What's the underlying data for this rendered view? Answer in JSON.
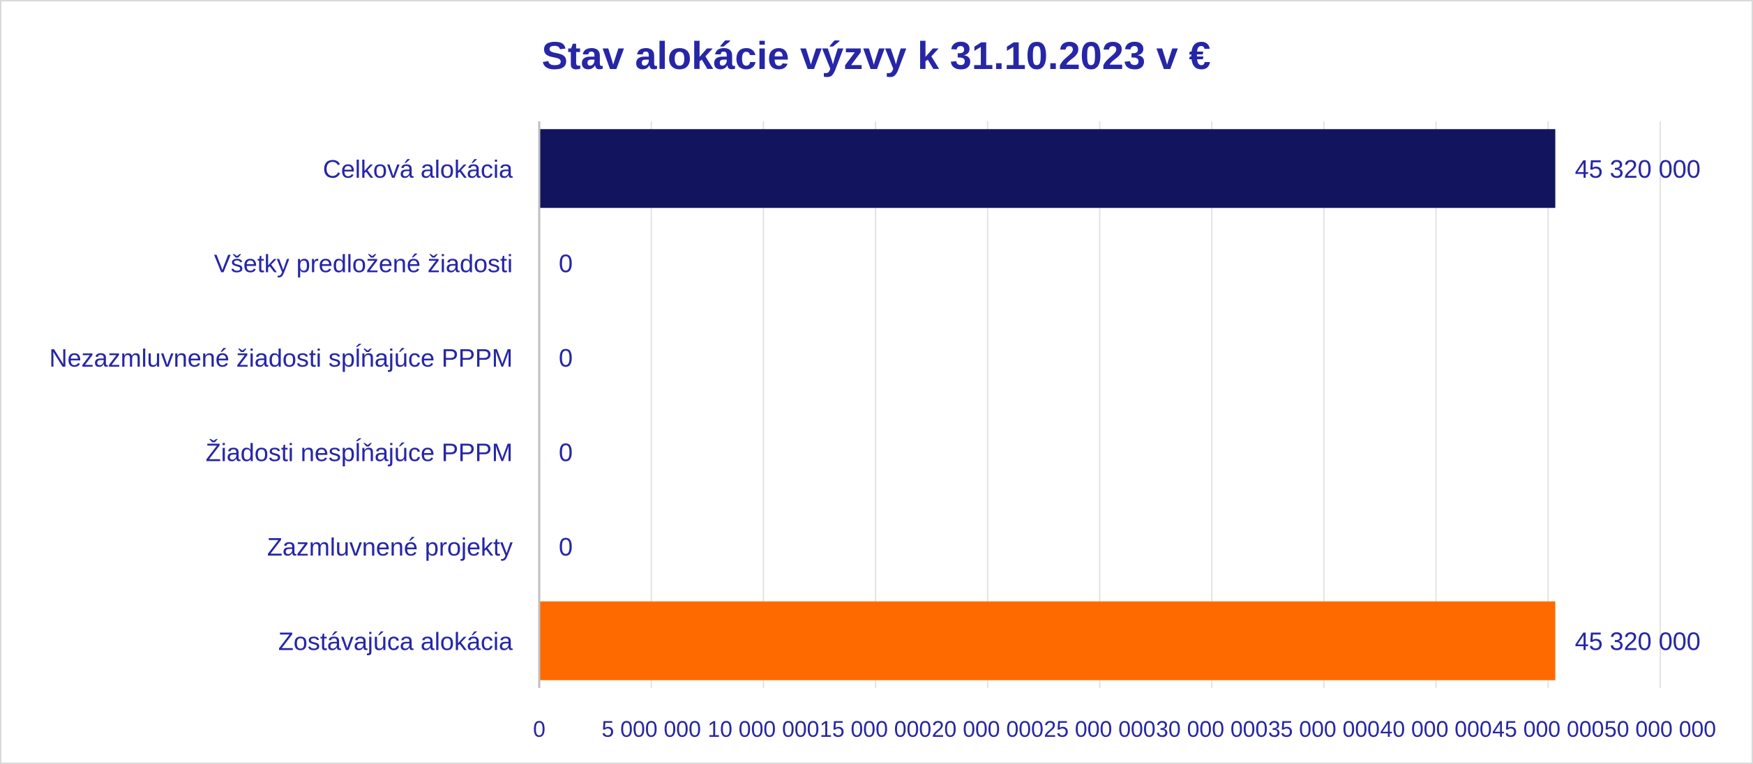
{
  "colors": {
    "text": "#2626a6",
    "title": "#2626a6",
    "grid": "#e3e3e3",
    "axis": "#bfbfbf",
    "bar_primary": "#12155e",
    "bar_accent": "#ff6a00"
  },
  "chart_data": {
    "type": "bar",
    "orientation": "horizontal",
    "title": "Stav alokácie výzvy k 31.10.2023 v €",
    "xlabel": "",
    "ylabel": "",
    "categories": [
      "Celková alokácia",
      "Všetky predložené žiadosti",
      "Nezazmluvnené žiadosti spĺňajúce PPPM",
      "Žiadosti nespĺňajúce PPPM",
      "Zazmluvnené projekty",
      "Zostávajúca alokácia"
    ],
    "values": [
      45320000,
      0,
      0,
      0,
      0,
      45320000
    ],
    "data_labels": [
      "45 320 000",
      "0",
      "0",
      "0",
      "0",
      "45 320 000"
    ],
    "bar_colors": [
      "#12155e",
      "#12155e",
      "#12155e",
      "#12155e",
      "#12155e",
      "#ff6a00"
    ],
    "xlim": [
      0,
      50000000
    ],
    "x_ticks": [
      0,
      5000000,
      10000000,
      15000000,
      20000000,
      25000000,
      30000000,
      35000000,
      40000000,
      45000000,
      50000000
    ],
    "x_tick_labels": [
      "0",
      "5 000 000",
      "10 000 000",
      "15 000 000",
      "20 000 000",
      "25 000 000",
      "30 000 000",
      "35 000 000",
      "40 000 000",
      "45 000 000",
      "50 000 000"
    ],
    "grid": "vertical",
    "legend": "none"
  }
}
